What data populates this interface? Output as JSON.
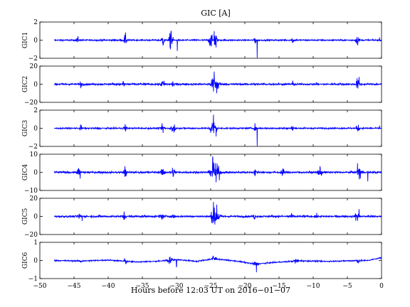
{
  "chart_data": {
    "type": "line",
    "title": "GIC [A]",
    "xlabel": "Hours before  12:03 UT on 2016−01−07",
    "xlim": [
      -50,
      0
    ],
    "xticks": [
      "−50",
      "−45",
      "−40",
      "−35",
      "−30",
      "−25",
      "−20",
      "−15",
      "−10",
      "−5",
      "0"
    ],
    "line_color": "#0000ff",
    "grid": false,
    "legend": "none",
    "data_start_x": -47.9,
    "panels": [
      {
        "ylabel": "GIC1",
        "ylim": [
          -2,
          2
        ],
        "yticks": [
          "2",
          "0",
          "−2"
        ],
        "baseline": 0.0,
        "noise": 0.07,
        "bursts": [
          [
            -44.5,
            0.15,
            0.4
          ],
          [
            -37.5,
            0.18,
            0.6
          ],
          [
            -32,
            0.18,
            0.6
          ],
          [
            -30.8,
            0.25,
            1.0
          ],
          [
            -25,
            0.28,
            0.7
          ],
          [
            -24.3,
            0.18,
            1.0
          ],
          [
            -18.5,
            0.12,
            0.5
          ],
          [
            -13,
            0.15,
            0.4
          ],
          [
            -3.5,
            0.25,
            0.45
          ]
        ],
        "spikes": [
          [
            -29.9,
            -1.2
          ],
          [
            -30.8,
            1.0
          ],
          [
            -24.5,
            1.0
          ],
          [
            -24.2,
            -0.8
          ],
          [
            -18.2,
            -1.95
          ],
          [
            -0.3,
            0.3
          ]
        ]
      },
      {
        "ylabel": "GIC2",
        "ylim": [
          -20,
          20
        ],
        "yticks": [
          "20",
          "0",
          "−20"
        ],
        "baseline": 0.0,
        "noise": 0.9,
        "bursts": [
          [
            -44,
            0.15,
            3
          ],
          [
            -37.7,
            0.15,
            4
          ],
          [
            -32,
            0.3,
            3
          ],
          [
            -30.5,
            0.2,
            3
          ],
          [
            -24.6,
            0.3,
            8
          ],
          [
            -24,
            0.3,
            6
          ],
          [
            -18.5,
            0.12,
            3
          ],
          [
            -13,
            0.2,
            2.5
          ],
          [
            -9.5,
            0.15,
            3
          ],
          [
            -3.5,
            0.25,
            5
          ]
        ],
        "spikes": [
          [
            -24.5,
            14
          ],
          [
            -24.1,
            -10
          ],
          [
            -24.6,
            -8
          ],
          [
            -3.3,
            8
          ]
        ]
      },
      {
        "ylabel": "GIC3",
        "ylim": [
          -2,
          2
        ],
        "yticks": [
          "2",
          "0",
          "−2"
        ],
        "baseline": 0.0,
        "noise": 0.07,
        "bursts": [
          [
            -44,
            0.15,
            0.3
          ],
          [
            -37.5,
            0.18,
            0.5
          ],
          [
            -32,
            0.18,
            0.5
          ],
          [
            -30.5,
            0.25,
            0.7
          ],
          [
            -24.8,
            0.3,
            0.8
          ],
          [
            -24.3,
            0.2,
            0.9
          ],
          [
            -18.5,
            0.12,
            0.4
          ],
          [
            -13,
            0.15,
            0.35
          ],
          [
            -3.5,
            0.2,
            0.4
          ]
        ],
        "spikes": [
          [
            -24.6,
            1.5
          ],
          [
            -24.2,
            -0.9
          ],
          [
            -18.2,
            -1.95
          ],
          [
            -0.3,
            0.3
          ]
        ]
      },
      {
        "ylabel": "GIC4",
        "ylim": [
          -10,
          10
        ],
        "yticks": [
          "10",
          "0",
          "−10"
        ],
        "baseline": 0.0,
        "noise": 0.45,
        "bursts": [
          [
            -44.3,
            0.2,
            2.5
          ],
          [
            -37.5,
            0.2,
            3
          ],
          [
            -32,
            0.25,
            2
          ],
          [
            -30.5,
            0.25,
            2.5
          ],
          [
            -24.6,
            0.4,
            4.5
          ],
          [
            -23.9,
            0.3,
            3.5
          ],
          [
            -18.5,
            0.15,
            2
          ],
          [
            -14.5,
            0.2,
            2
          ],
          [
            -9,
            0.3,
            2
          ],
          [
            -3.2,
            0.3,
            3.5
          ]
        ],
        "spikes": [
          [
            -24.7,
            8.5
          ],
          [
            -24.2,
            -5.5
          ],
          [
            -44.1,
            -3.5
          ],
          [
            -3.5,
            5
          ],
          [
            -2.0,
            -5
          ]
        ]
      },
      {
        "ylabel": "GIC5",
        "ylim": [
          -20,
          20
        ],
        "yticks": [
          "20",
          "0",
          "−20"
        ],
        "baseline": 0.0,
        "noise": 0.9,
        "bursts": [
          [
            -44.2,
            0.2,
            3
          ],
          [
            -37.7,
            0.2,
            3.5
          ],
          [
            -32.2,
            0.3,
            3
          ],
          [
            -30.5,
            0.2,
            3
          ],
          [
            -24.6,
            0.35,
            7
          ],
          [
            -24,
            0.3,
            6
          ],
          [
            -18.6,
            0.12,
            3
          ],
          [
            -13.3,
            0.2,
            3
          ],
          [
            -9.6,
            0.15,
            3
          ],
          [
            -3.6,
            0.25,
            5
          ]
        ],
        "spikes": [
          [
            -24.6,
            16
          ],
          [
            -24.1,
            13
          ],
          [
            -24.4,
            -9
          ],
          [
            -3.3,
            8
          ],
          [
            -43.8,
            -5
          ]
        ]
      },
      {
        "ylabel": "GIC6",
        "ylim": [
          -1,
          1
        ],
        "yticks": [
          "1",
          "0",
          "−1"
        ],
        "baseline": 0.0,
        "noise": 0.03,
        "bursts": [
          [
            -44,
            0.2,
            0.1
          ],
          [
            -37.5,
            0.2,
            0.15
          ],
          [
            -31,
            0.4,
            0.15
          ],
          [
            -24.5,
            0.3,
            0.22
          ],
          [
            -18.5,
            0.3,
            0.12
          ],
          [
            -12.5,
            0.3,
            0.12
          ],
          [
            -3.5,
            0.3,
            0.12
          ]
        ],
        "trend": [
          [
            -47.9,
            0.0
          ],
          [
            -44,
            -0.03
          ],
          [
            -40,
            0.02
          ],
          [
            -36,
            -0.08
          ],
          [
            -33,
            -0.05
          ],
          [
            -30,
            0.05
          ],
          [
            -27,
            -0.05
          ],
          [
            -24.5,
            0.1
          ],
          [
            -21,
            -0.05
          ],
          [
            -18.5,
            -0.2
          ],
          [
            -16,
            -0.12
          ],
          [
            -12,
            -0.02
          ],
          [
            -8,
            -0.05
          ],
          [
            -5,
            -0.02
          ],
          [
            -2,
            0.0
          ],
          [
            0,
            0.15
          ]
        ],
        "spikes": [
          [
            -18.3,
            -0.65
          ],
          [
            -30,
            -0.35
          ],
          [
            -0.3,
            0.18
          ]
        ]
      }
    ]
  }
}
